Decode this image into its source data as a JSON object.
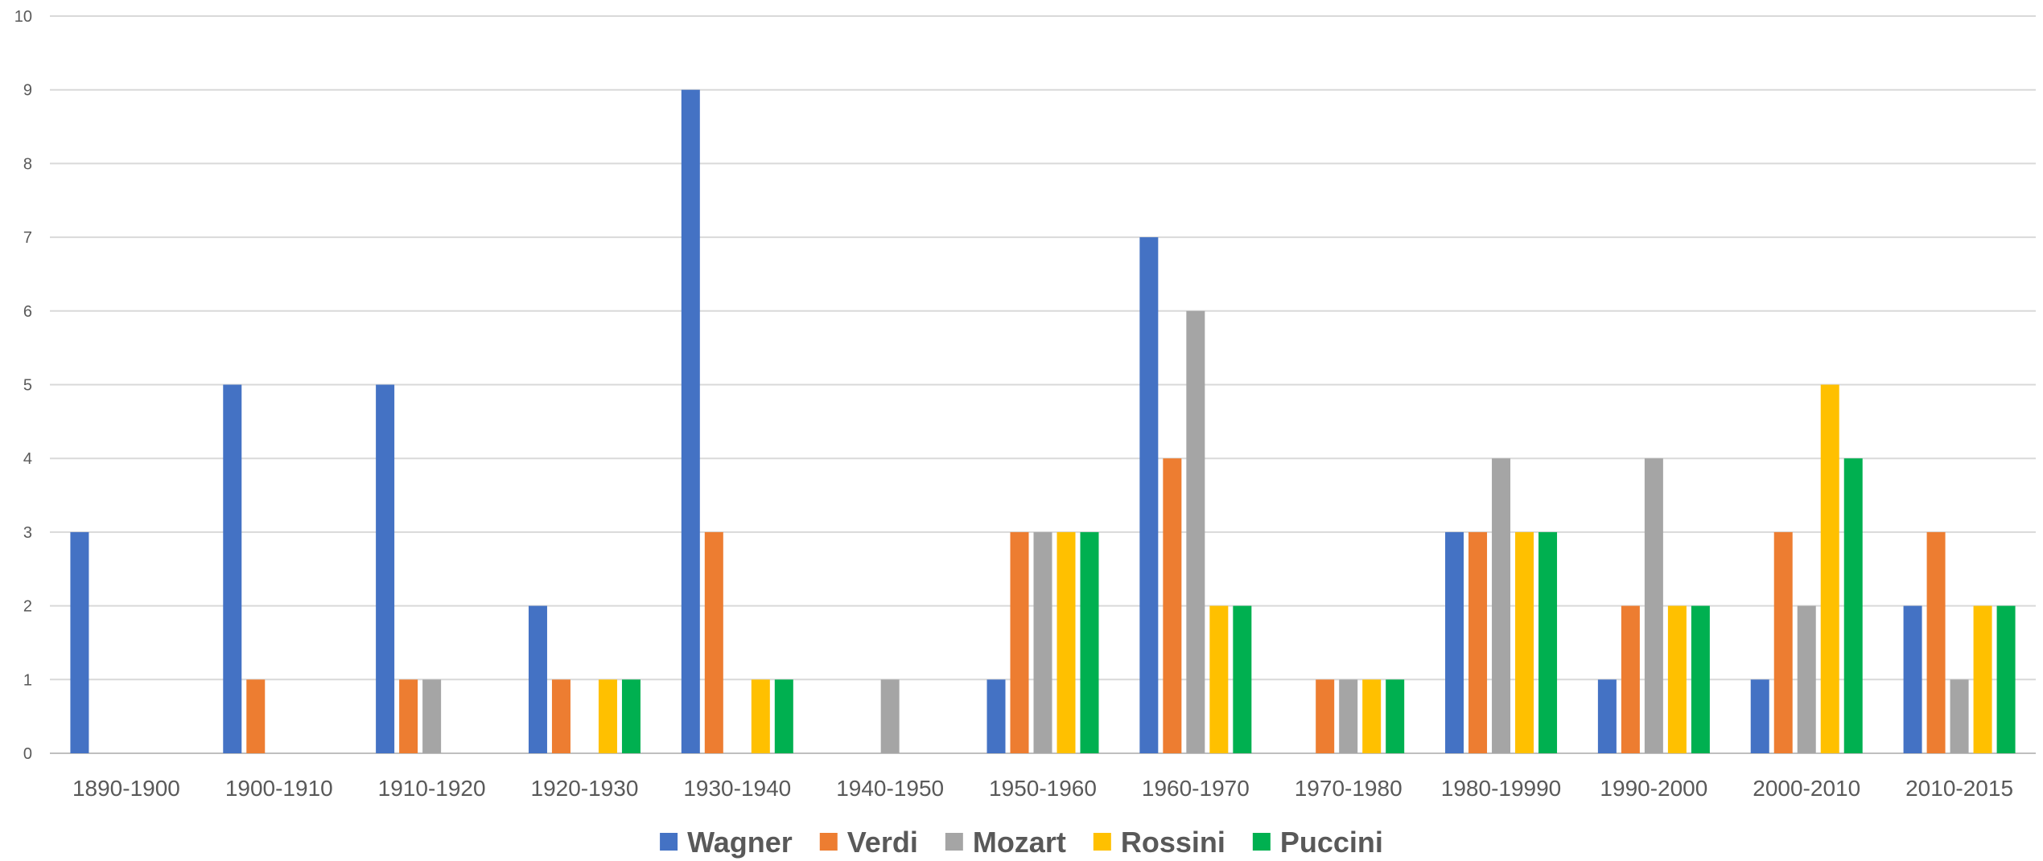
{
  "chart_data": {
    "type": "bar",
    "categories": [
      "1890-1900",
      "1900-1910",
      "1910-1920",
      "1920-1930",
      "1930-1940",
      "1940-1950",
      "1950-1960",
      "1960-1970",
      "1970-1980",
      "1980-19990",
      "1990-2000",
      "2000-2010",
      "2010-2015"
    ],
    "series": [
      {
        "name": "Wagner",
        "color": "#4472C4",
        "values": [
          3,
          5,
          5,
          2,
          9,
          0,
          1,
          7,
          0,
          3,
          1,
          1,
          2
        ]
      },
      {
        "name": "Verdi",
        "color": "#ED7D31",
        "values": [
          0,
          1,
          1,
          1,
          3,
          0,
          3,
          4,
          1,
          3,
          2,
          3,
          3
        ]
      },
      {
        "name": "Mozart",
        "color": "#A5A5A5",
        "values": [
          0,
          0,
          1,
          0,
          0,
          1,
          3,
          6,
          1,
          4,
          4,
          2,
          1
        ]
      },
      {
        "name": "Rossini",
        "color": "#FFC000",
        "values": [
          0,
          0,
          0,
          1,
          1,
          0,
          3,
          2,
          1,
          3,
          2,
          5,
          2
        ]
      },
      {
        "name": "Puccini",
        "color": "#00B050",
        "values": [
          0,
          0,
          0,
          1,
          1,
          0,
          3,
          2,
          1,
          3,
          2,
          4,
          2
        ]
      }
    ],
    "ylim": [
      0,
      10
    ],
    "yticks": [
      "0",
      "1",
      "2",
      "3",
      "4",
      "5",
      "6",
      "7",
      "8",
      "9",
      "10"
    ],
    "grid": true,
    "legend_position": "bottom"
  }
}
